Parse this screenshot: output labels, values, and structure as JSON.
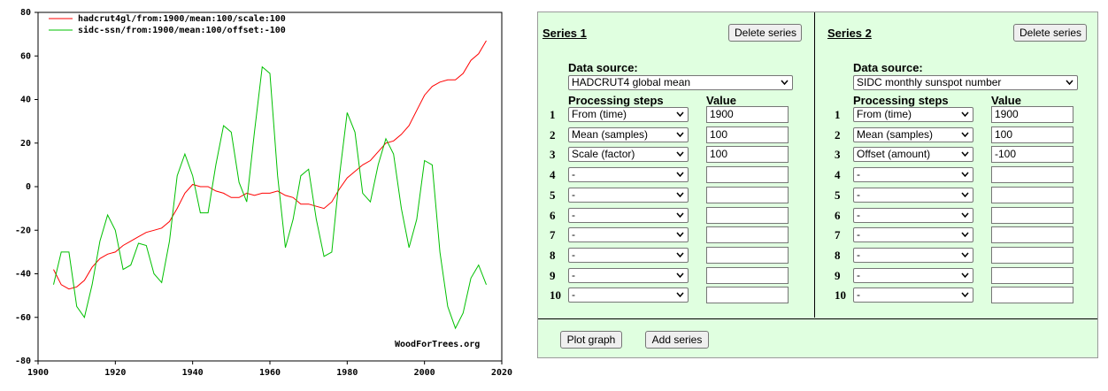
{
  "chart_data": {
    "type": "line",
    "x": [
      1904,
      1906,
      1908,
      1910,
      1912,
      1914,
      1916,
      1918,
      1920,
      1922,
      1924,
      1926,
      1928,
      1930,
      1932,
      1934,
      1936,
      1938,
      1940,
      1942,
      1944,
      1946,
      1948,
      1950,
      1952,
      1954,
      1956,
      1958,
      1960,
      1962,
      1964,
      1966,
      1968,
      1970,
      1972,
      1974,
      1976,
      1978,
      1980,
      1982,
      1984,
      1986,
      1988,
      1990,
      1992,
      1994,
      1996,
      1998,
      2000,
      2002,
      2004,
      2006,
      2008,
      2010,
      2012,
      2014,
      2016
    ],
    "series": [
      {
        "name": "hadcrut4gl/from:1900/mean:100/scale:100",
        "color": "#ff0000",
        "values": [
          -38,
          -45,
          -47,
          -46,
          -43,
          -37,
          -33,
          -31,
          -30,
          -27,
          -25,
          -23,
          -21,
          -20,
          -19,
          -16,
          -10,
          -3,
          1,
          0,
          0,
          -2,
          -3,
          -5,
          -5,
          -3,
          -4,
          -3,
          -3,
          -2,
          -4,
          -5,
          -8,
          -8,
          -9,
          -10,
          -7,
          -1,
          4,
          7,
          10,
          12,
          16,
          20,
          21,
          24,
          28,
          35,
          42,
          46,
          48,
          49,
          49,
          52,
          58,
          61,
          67
        ]
      },
      {
        "name": "sidc-ssn/from:1900/mean:100/offset:-100",
        "color": "#00c000",
        "values": [
          -45,
          -30,
          -30,
          -55,
          -60,
          -45,
          -25,
          -13,
          -20,
          -38,
          -36,
          -26,
          -27,
          -40,
          -44,
          -25,
          5,
          15,
          5,
          -12,
          -12,
          10,
          28,
          25,
          2,
          -7,
          25,
          55,
          52,
          5,
          -28,
          -15,
          5,
          8,
          -15,
          -32,
          -30,
          5,
          34,
          25,
          -3,
          -7,
          10,
          22,
          15,
          -10,
          -28,
          -15,
          12,
          10,
          -30,
          -55,
          -65,
          -58,
          -42,
          -36,
          -45
        ]
      }
    ],
    "xlim": [
      1900,
      2020
    ],
    "xticks": [
      1900,
      1920,
      1940,
      1960,
      1980,
      2000,
      2020
    ],
    "ylim": [
      -80,
      80
    ],
    "yticks": [
      -80,
      -60,
      -40,
      -20,
      0,
      20,
      40,
      60,
      80
    ],
    "annotation": "WoodForTrees.org"
  },
  "form": {
    "panels": [
      {
        "title": "Series 1",
        "delete_button": "Delete series",
        "data_source_label": "Data source:",
        "data_source": "HADCRUT4 global mean",
        "steps_header": "Processing steps",
        "value_header": "Value",
        "steps": [
          {
            "number": 1,
            "step": "From (time)",
            "value": "1900"
          },
          {
            "number": 2,
            "step": "Mean (samples)",
            "value": "100"
          },
          {
            "number": 3,
            "step": "Scale (factor)",
            "value": "100"
          },
          {
            "number": 4,
            "step": "-"
          },
          {
            "number": 5,
            "step": "-"
          },
          {
            "number": 6,
            "step": "-"
          },
          {
            "number": 7,
            "step": "-"
          },
          {
            "number": 8,
            "step": "-"
          },
          {
            "number": 9,
            "step": "-"
          },
          {
            "number": 10,
            "step": "-"
          }
        ]
      },
      {
        "title": "Series 2",
        "delete_button": "Delete series",
        "data_source_label": "Data source:",
        "data_source": "SIDC monthly sunspot number",
        "steps_header": "Processing steps",
        "value_header": "Value",
        "steps": [
          {
            "number": 1,
            "step": "From (time)",
            "value": "1900"
          },
          {
            "number": 2,
            "step": "Mean (samples)",
            "value": "100"
          },
          {
            "number": 3,
            "step": "Offset (amount)",
            "value": "-100"
          },
          {
            "number": 4,
            "step": "-"
          },
          {
            "number": 5,
            "step": "-"
          },
          {
            "number": 6,
            "step": "-"
          },
          {
            "number": 7,
            "step": "-"
          },
          {
            "number": 8,
            "step": "-"
          },
          {
            "number": 9,
            "step": "-"
          },
          {
            "number": 10,
            "step": "-"
          }
        ]
      }
    ],
    "plot_button": "Plot graph",
    "add_button": "Add series"
  }
}
